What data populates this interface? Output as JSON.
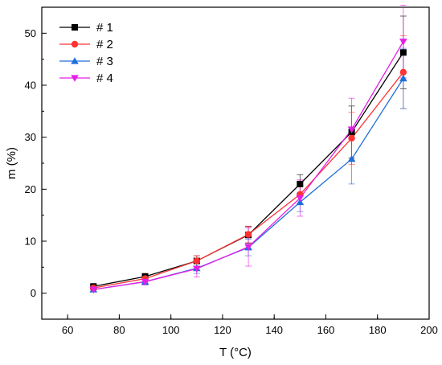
{
  "chart_data": {
    "type": "line",
    "xlabel": "T (°C)",
    "ylabel": "m (%)",
    "xlim": [
      50,
      200
    ],
    "ylim": [
      -5,
      55
    ],
    "xticks": [
      60,
      80,
      100,
      120,
      140,
      160,
      180,
      200
    ],
    "yticks": [
      0,
      10,
      20,
      30,
      40,
      50
    ],
    "grid": false,
    "legend_position": "top-left",
    "x": [
      70,
      90,
      110,
      130,
      150,
      170,
      190
    ],
    "series": [
      {
        "name": "# 1",
        "color": "#000000",
        "marker": "square",
        "values": [
          1.3,
          3.2,
          6.2,
          11.2,
          21.0,
          31.0,
          46.3
        ],
        "errors": [
          0.4,
          0.6,
          1.0,
          1.6,
          1.8,
          5.0,
          7.0
        ]
      },
      {
        "name": "# 2",
        "color": "#ff3333",
        "marker": "circle",
        "values": [
          1.0,
          2.8,
          6.2,
          11.3,
          19.0,
          29.8,
          42.5
        ],
        "errors": [
          0.4,
          0.6,
          1.0,
          1.6,
          1.8,
          5.0,
          7.0
        ]
      },
      {
        "name": "# 3",
        "color": "#1f6fd9",
        "marker": "triangle-up",
        "values": [
          0.7,
          2.2,
          4.8,
          8.8,
          17.5,
          25.8,
          41.3
        ],
        "errors": [
          0.4,
          0.6,
          1.0,
          1.6,
          1.8,
          4.8,
          5.8
        ]
      },
      {
        "name": "# 4",
        "color": "#e61ee6",
        "marker": "triangle-down",
        "values": [
          0.7,
          2.2,
          4.7,
          8.9,
          18.3,
          31.5,
          48.4
        ],
        "errors": [
          0.4,
          0.6,
          1.6,
          3.7,
          3.5,
          6.0,
          7.0
        ]
      }
    ]
  }
}
